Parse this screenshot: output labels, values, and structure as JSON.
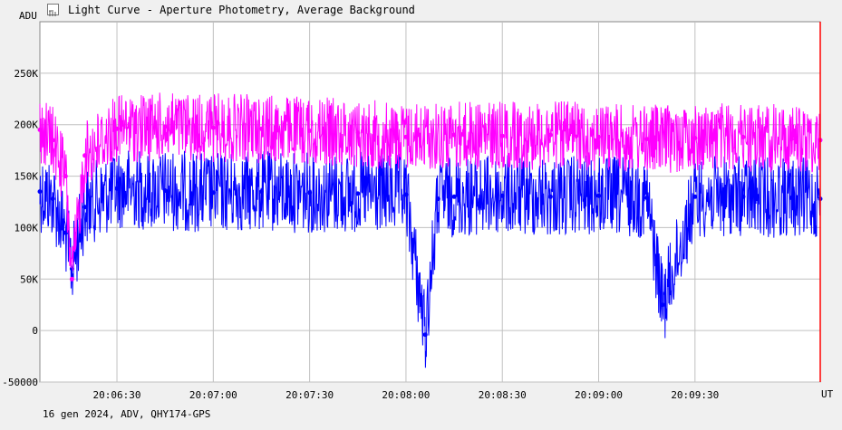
{
  "window": {
    "title": "Light Curve - Aperture Photometry, Average Background",
    "footer": "16 gen 2024, ADV, QHY174-GPS",
    "icon": "chart-icon"
  },
  "chart_data": {
    "type": "line",
    "title": "Light Curve - Aperture Photometry, Average Background",
    "xlabel": "UT",
    "ylabel": "ADU",
    "y_ticks": [
      {
        "value": 250000,
        "label": "250K"
      },
      {
        "value": 200000,
        "label": "200K"
      },
      {
        "value": 150000,
        "label": "150K"
      },
      {
        "value": 100000,
        "label": "100K"
      },
      {
        "value": 50000,
        "label": "50K"
      },
      {
        "value": 0,
        "label": "0"
      },
      {
        "value": -50000,
        "label": "-50000"
      }
    ],
    "x_ticks": [
      "20:06:30",
      "20:07:00",
      "20:07:30",
      "20:08:00",
      "20:08:30",
      "20:09:00",
      "20:09:30"
    ],
    "xlim": [
      "20:06:06",
      "20:10:09"
    ],
    "ylim": [
      -50000,
      300000
    ],
    "grid": true,
    "marker_line": {
      "x": "20:10:09",
      "color": "#ff0000"
    },
    "series": [
      {
        "color": "#0000ff",
        "x": [
          "20:06:06",
          "20:06:10",
          "20:06:14",
          "20:06:16",
          "20:06:20",
          "20:06:30",
          "20:06:45",
          "20:07:00",
          "20:07:15",
          "20:07:30",
          "20:07:45",
          "20:08:00",
          "20:08:06",
          "20:08:10",
          "20:08:15",
          "20:08:30",
          "20:08:45",
          "20:09:00",
          "20:09:15",
          "20:09:20",
          "20:09:30",
          "20:09:45",
          "20:10:00",
          "20:10:09"
        ],
        "values": [
          135000,
          128000,
          95000,
          60000,
          120000,
          138000,
          136000,
          134000,
          135000,
          134000,
          133000,
          132000,
          -4000,
          128000,
          130000,
          131000,
          130000,
          131000,
          129000,
          25000,
          130000,
          130000,
          129000,
          128000
        ]
      },
      {
        "color": "#ff00ff",
        "x": [
          "20:06:06",
          "20:06:10",
          "20:06:14",
          "20:06:16",
          "20:06:20",
          "20:06:30",
          "20:06:45",
          "20:07:00",
          "20:07:15",
          "20:07:30",
          "20:07:45",
          "20:08:00",
          "20:08:15",
          "20:08:30",
          "20:08:45",
          "20:09:00",
          "20:09:15",
          "20:09:30",
          "20:09:45",
          "20:10:00",
          "20:10:09"
        ],
        "values": [
          195000,
          185000,
          150000,
          50000,
          170000,
          196000,
          198000,
          197000,
          196000,
          194000,
          192000,
          188000,
          190000,
          189000,
          190000,
          188000,
          186000,
          187000,
          188000,
          186000,
          185000
        ]
      }
    ]
  }
}
